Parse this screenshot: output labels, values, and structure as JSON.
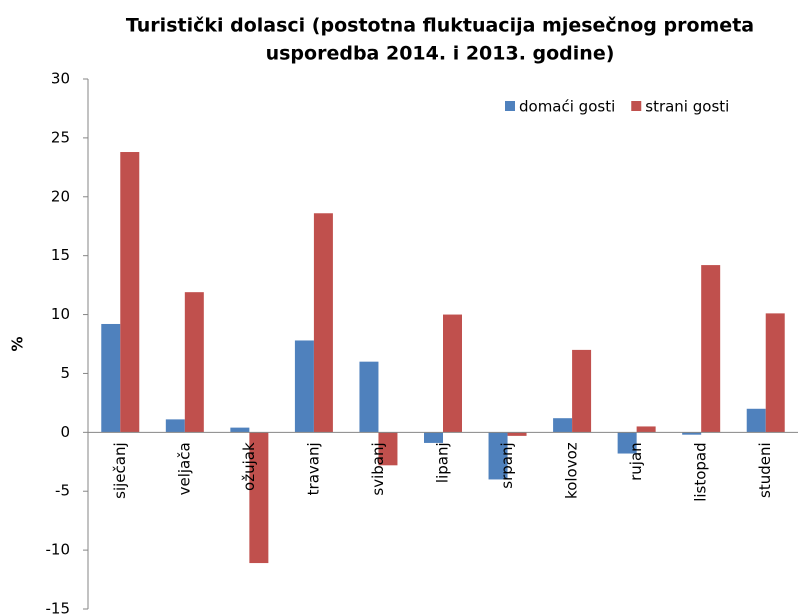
{
  "chart_data": {
    "type": "bar",
    "title": [
      "Turistički dolasci (postotna fluktuacija mjesečnog prometa",
      "usporedba 2014. i 2013. godine)"
    ],
    "y_label": "%",
    "categories": [
      "siječanj",
      "veljača",
      "ožujak",
      "travanj",
      "svibanj",
      "lipanj",
      "srpanj",
      "kolovoz",
      "rujan",
      "listopad",
      "studeni"
    ],
    "series": [
      {
        "name": "domaći gosti",
        "color": "#4f81bd",
        "values": [
          9.2,
          1.1,
          0.4,
          7.8,
          6.0,
          -0.9,
          -4.0,
          1.2,
          -1.8,
          -0.2,
          2.0
        ]
      },
      {
        "name": "strani gosti",
        "color": "#c0504d",
        "values": [
          23.8,
          11.9,
          -11.1,
          18.6,
          -2.8,
          10.0,
          -0.3,
          7.0,
          0.5,
          14.2,
          10.1
        ]
      }
    ],
    "ylim": [
      -15,
      30
    ],
    "yticks": [
      -15,
      -10,
      -5,
      0,
      5,
      10,
      15,
      20,
      25,
      30
    ],
    "grid": false,
    "legend": "top-right"
  }
}
